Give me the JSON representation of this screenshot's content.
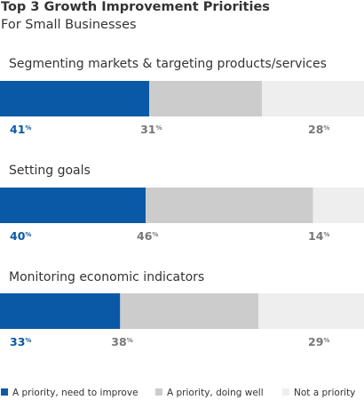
{
  "title": "Top 3 Growth Improvement Priorities",
  "subtitle": "For Small Businesses",
  "colors": {
    "need": "#0a59a6",
    "doing_well": "#cccccc",
    "not_priority": "#eeeeee",
    "need_label": "#0a59a6",
    "other_label": "#777777"
  },
  "chart_data": {
    "type": "bar",
    "orientation": "horizontal",
    "stacked": true,
    "unit": "%",
    "categories": [
      "Segmenting markets & targeting products/services",
      "Setting goals",
      "Monitoring economic indicators"
    ],
    "series": [
      {
        "name": "A priority, need to improve",
        "values": [
          41,
          40,
          33
        ]
      },
      {
        "name": "A priority, doing well",
        "values": [
          31,
          46,
          38
        ]
      },
      {
        "name": "Not a priority",
        "values": [
          28,
          14,
          29
        ]
      }
    ]
  }
}
